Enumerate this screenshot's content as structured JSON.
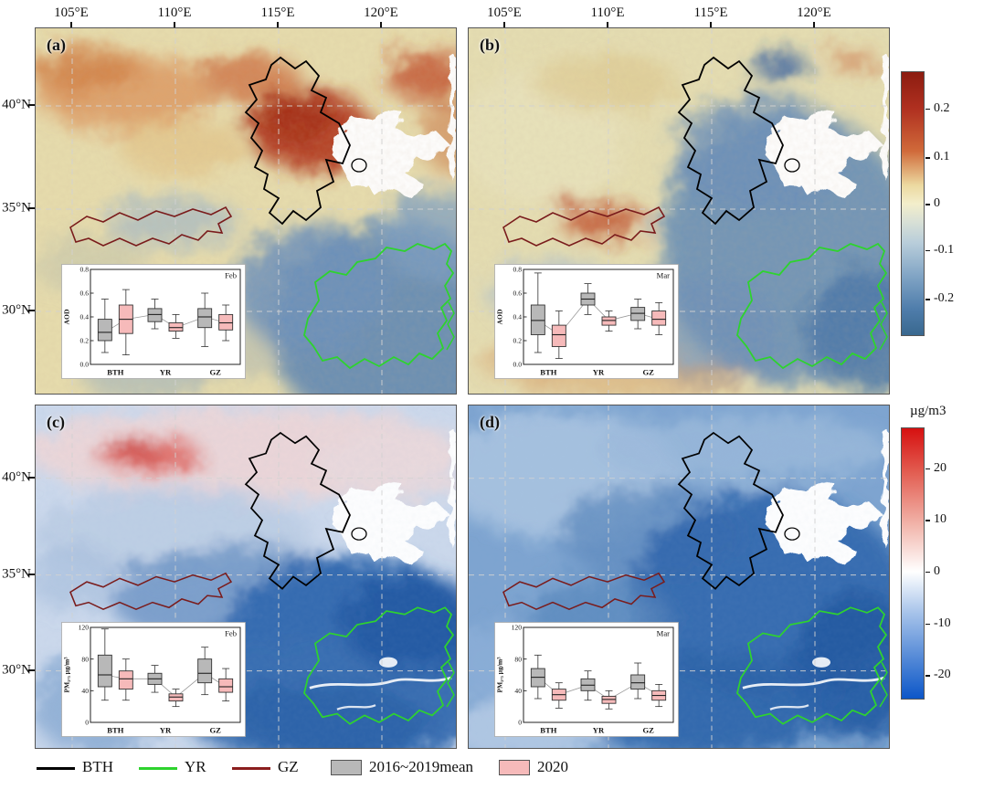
{
  "axes": {
    "lon_labels": [
      "105°E",
      "110°E",
      "115°E",
      "120°E"
    ],
    "lat_labels": [
      "40°N",
      "35°N",
      "30°N"
    ]
  },
  "panels": [
    {
      "label": "(a)"
    },
    {
      "label": "(b)"
    },
    {
      "label": "(c)"
    },
    {
      "label": "(d)"
    }
  ],
  "colorbar_aod": {
    "ticks": [
      "0.2",
      "0.1",
      "0",
      "-0.1",
      "-0.2"
    ],
    "colors": {
      "high": "#8c1c10",
      "mid": "#f3eecb",
      "low": "#39688f"
    }
  },
  "colorbar_pm": {
    "unit": "µg/m3",
    "ticks": [
      "20",
      "10",
      "0",
      "-10",
      "-20"
    ],
    "colors": {
      "high": "#d61010",
      "mid": "#ffffff",
      "low": "#0c56c8"
    }
  },
  "legend": {
    "regions": [
      {
        "name": "BTH",
        "color": "#000000"
      },
      {
        "name": "YR",
        "color": "#2ed32e"
      },
      {
        "name": "GZ",
        "color": "#8b1e1e"
      }
    ],
    "series": [
      {
        "name": "2016~2019mean",
        "color": "#b8b8b8"
      },
      {
        "name": "2020",
        "color": "#f6baba"
      }
    ]
  },
  "chart_data": [
    {
      "id": "inset-a",
      "type": "boxplot",
      "title": "Feb",
      "ylabel": "AOD",
      "ylim": [
        0.0,
        0.8
      ],
      "yticks": [
        0.0,
        0.2,
        0.4,
        0.6,
        0.8
      ],
      "tick_decimals": 1,
      "categories": [
        "BTH",
        "YR",
        "GZ"
      ],
      "series": [
        {
          "name": "2016~2019mean",
          "color": "#b8b8b8",
          "boxes": [
            {
              "whislo": 0.1,
              "q1": 0.2,
              "med": 0.27,
              "q3": 0.38,
              "whishi": 0.55
            },
            {
              "whislo": 0.3,
              "q1": 0.36,
              "med": 0.42,
              "q3": 0.47,
              "whishi": 0.55
            },
            {
              "whislo": 0.15,
              "q1": 0.31,
              "med": 0.4,
              "q3": 0.47,
              "whishi": 0.6
            }
          ]
        },
        {
          "name": "2020",
          "color": "#f6baba",
          "boxes": [
            {
              "whislo": 0.08,
              "q1": 0.26,
              "med": 0.38,
              "q3": 0.5,
              "whishi": 0.63
            },
            {
              "whislo": 0.22,
              "q1": 0.28,
              "med": 0.31,
              "q3": 0.35,
              "whishi": 0.42
            },
            {
              "whislo": 0.2,
              "q1": 0.29,
              "med": 0.35,
              "q3": 0.42,
              "whishi": 0.5
            }
          ]
        }
      ]
    },
    {
      "id": "inset-b",
      "type": "boxplot",
      "title": "Mar",
      "ylabel": "AOD",
      "ylim": [
        0.0,
        0.8
      ],
      "yticks": [
        0.0,
        0.2,
        0.4,
        0.6,
        0.8
      ],
      "tick_decimals": 1,
      "categories": [
        "BTH",
        "YR",
        "GZ"
      ],
      "series": [
        {
          "name": "2016~2019mean",
          "color": "#b8b8b8",
          "boxes": [
            {
              "whislo": 0.1,
              "q1": 0.25,
              "med": 0.37,
              "q3": 0.5,
              "whishi": 0.77
            },
            {
              "whislo": 0.42,
              "q1": 0.5,
              "med": 0.55,
              "q3": 0.6,
              "whishi": 0.68
            },
            {
              "whislo": 0.3,
              "q1": 0.37,
              "med": 0.43,
              "q3": 0.48,
              "whishi": 0.55
            }
          ]
        },
        {
          "name": "2020",
          "color": "#f6baba",
          "boxes": [
            {
              "whislo": 0.05,
              "q1": 0.15,
              "med": 0.25,
              "q3": 0.33,
              "whishi": 0.45
            },
            {
              "whislo": 0.28,
              "q1": 0.33,
              "med": 0.37,
              "q3": 0.4,
              "whishi": 0.45
            },
            {
              "whislo": 0.25,
              "q1": 0.33,
              "med": 0.38,
              "q3": 0.45,
              "whishi": 0.52
            }
          ]
        }
      ]
    },
    {
      "id": "inset-c",
      "type": "boxplot",
      "title": "Feb",
      "ylabel": "PM₂.₅ µg/m³",
      "ylim": [
        0,
        120
      ],
      "yticks": [
        0,
        40,
        80,
        120
      ],
      "tick_decimals": 0,
      "categories": [
        "BTH",
        "YR",
        "GZ"
      ],
      "series": [
        {
          "name": "2016~2019mean",
          "color": "#b8b8b8",
          "boxes": [
            {
              "whislo": 28,
              "q1": 45,
              "med": 60,
              "q3": 85,
              "whishi": 118
            },
            {
              "whislo": 38,
              "q1": 48,
              "med": 55,
              "q3": 62,
              "whishi": 72
            },
            {
              "whislo": 35,
              "q1": 50,
              "med": 62,
              "q3": 80,
              "whishi": 95
            }
          ]
        },
        {
          "name": "2020",
          "color": "#f6baba",
          "boxes": [
            {
              "whislo": 28,
              "q1": 42,
              "med": 55,
              "q3": 65,
              "whishi": 80
            },
            {
              "whislo": 20,
              "q1": 27,
              "med": 32,
              "q3": 36,
              "whishi": 42
            },
            {
              "whislo": 27,
              "q1": 38,
              "med": 45,
              "q3": 55,
              "whishi": 68
            }
          ]
        }
      ]
    },
    {
      "id": "inset-d",
      "type": "boxplot",
      "title": "Mar",
      "ylabel": "PM₂.₅ µg/m³",
      "ylim": [
        0,
        120
      ],
      "yticks": [
        0,
        40,
        80,
        120
      ],
      "tick_decimals": 0,
      "categories": [
        "BTH",
        "YR",
        "GZ"
      ],
      "series": [
        {
          "name": "2016~2019mean",
          "color": "#b8b8b8",
          "boxes": [
            {
              "whislo": 30,
              "q1": 45,
              "med": 57,
              "q3": 68,
              "whishi": 85
            },
            {
              "whislo": 28,
              "q1": 40,
              "med": 47,
              "q3": 55,
              "whishi": 65
            },
            {
              "whislo": 30,
              "q1": 42,
              "med": 50,
              "q3": 60,
              "whishi": 75
            }
          ]
        },
        {
          "name": "2020",
          "color": "#f6baba",
          "boxes": [
            {
              "whislo": 18,
              "q1": 28,
              "med": 35,
              "q3": 42,
              "whishi": 50
            },
            {
              "whislo": 17,
              "q1": 24,
              "med": 29,
              "q3": 33,
              "whishi": 40
            },
            {
              "whislo": 20,
              "q1": 28,
              "med": 34,
              "q3": 40,
              "whishi": 48
            }
          ]
        }
      ]
    }
  ]
}
